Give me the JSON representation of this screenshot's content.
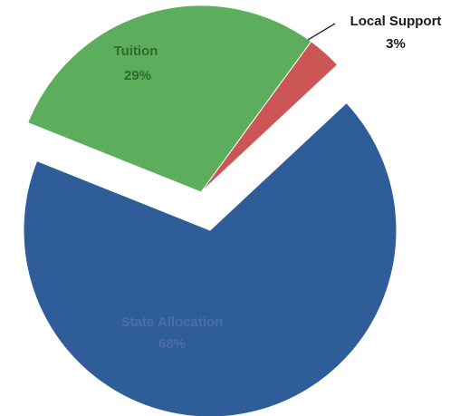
{
  "chart_data": {
    "type": "pie",
    "exploded": true,
    "slices": [
      {
        "label": "State Allocation",
        "value": 68,
        "value_label": "68%",
        "color": "#2f5d9a",
        "label_color": "#4a6ea8"
      },
      {
        "label": "Tuition",
        "value": 29,
        "value_label": "29%",
        "color": "#5cae5c",
        "label_color": "#2f6a2f"
      },
      {
        "label": "Local Support",
        "value": 3,
        "value_label": "3%",
        "color": "#cc5656",
        "label_color": "#1a1a1a"
      }
    ]
  }
}
